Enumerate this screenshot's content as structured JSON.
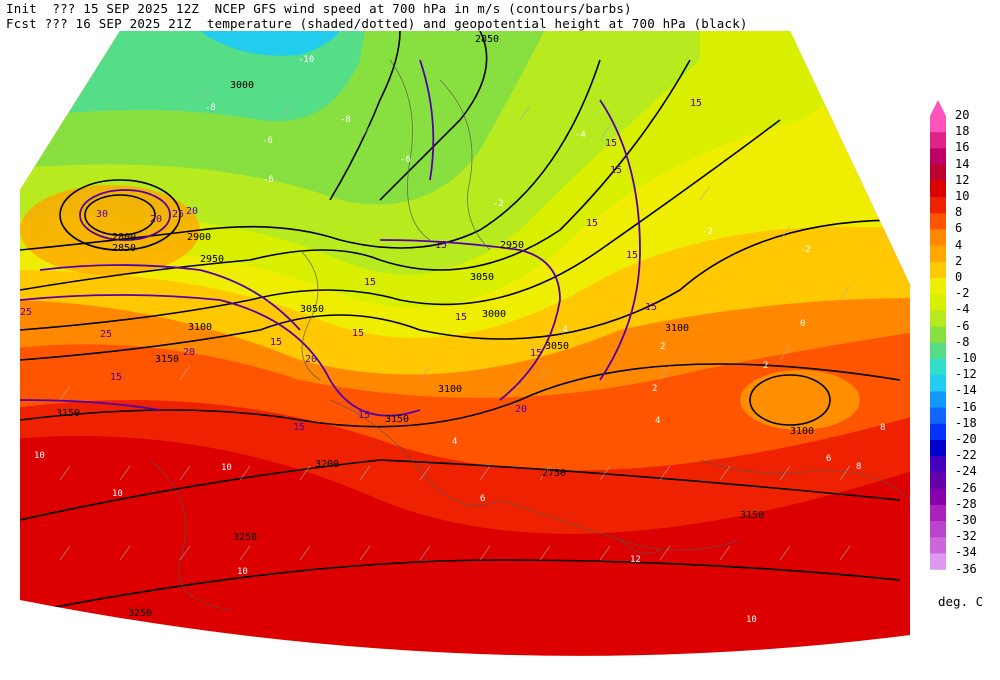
{
  "header": {
    "line1": "Init  ??? 15 SEP 2025 12Z  NCEP GFS wind speed at 700 hPa in m/s (contours/barbs)",
    "line2": "Fcst ??? 16 SEP 2025 21Z  temperature (shaded/dotted) and geopotential height at 700 hPa (black)"
  },
  "colorbar": {
    "units": "deg. C",
    "levels": [
      "20",
      "18",
      "16",
      "14",
      "12",
      "10",
      "8",
      "6",
      "4",
      "2",
      "0",
      "-2",
      "-4",
      "-6",
      "-8",
      "-10",
      "-12",
      "-14",
      "-16",
      "-18",
      "-20",
      "-22",
      "-24",
      "-26",
      "-28",
      "-30",
      "-32",
      "-34",
      "-36"
    ],
    "colors": [
      "#ff55bb",
      "#dd2288",
      "#bb0066",
      "#bb0030",
      "#dd0000",
      "#ee2200",
      "#ff5500",
      "#ff8800",
      "#ffa600",
      "#ffc800",
      "#f0ee00",
      "#d8f000",
      "#b8ea20",
      "#88e040",
      "#55dd88",
      "#33ddcc",
      "#22ccee",
      "#1199ff",
      "#1166ff",
      "#0033ff",
      "#0000cc",
      "#4400bb",
      "#6600aa",
      "#8800aa",
      "#aa22bb",
      "#bb44cc",
      "#cc66dd",
      "#dd99ee",
      "#eeccff"
    ]
  },
  "height_labels": [
    "2850",
    "3000",
    "2800",
    "2850",
    "2900",
    "2950",
    "3050",
    "3100",
    "3150",
    "3200",
    "3250",
    "3250",
    "3050",
    "2950",
    "3000",
    "3100",
    "3050",
    "3100",
    "3150",
    "3150",
    "2750",
    "3100",
    "3150"
  ],
  "wind_labels": [
    "30",
    "25",
    "20",
    "25",
    "20",
    "25",
    "20",
    "15",
    "15",
    "15",
    "15",
    "20",
    "15",
    "15",
    "15",
    "20",
    "15",
    "15",
    "15",
    "15",
    "15",
    "15",
    "15",
    "15"
  ],
  "temp_labels": [
    "-10",
    "-8",
    "-8",
    "-6",
    "-6",
    "-6",
    "-4",
    "-4",
    "-2",
    "-2",
    "-2",
    "0",
    "2",
    "2",
    "2",
    "4",
    "4",
    "6",
    "6",
    "8",
    "8",
    "10",
    "10",
    "10",
    "10",
    "10",
    "12"
  ]
}
